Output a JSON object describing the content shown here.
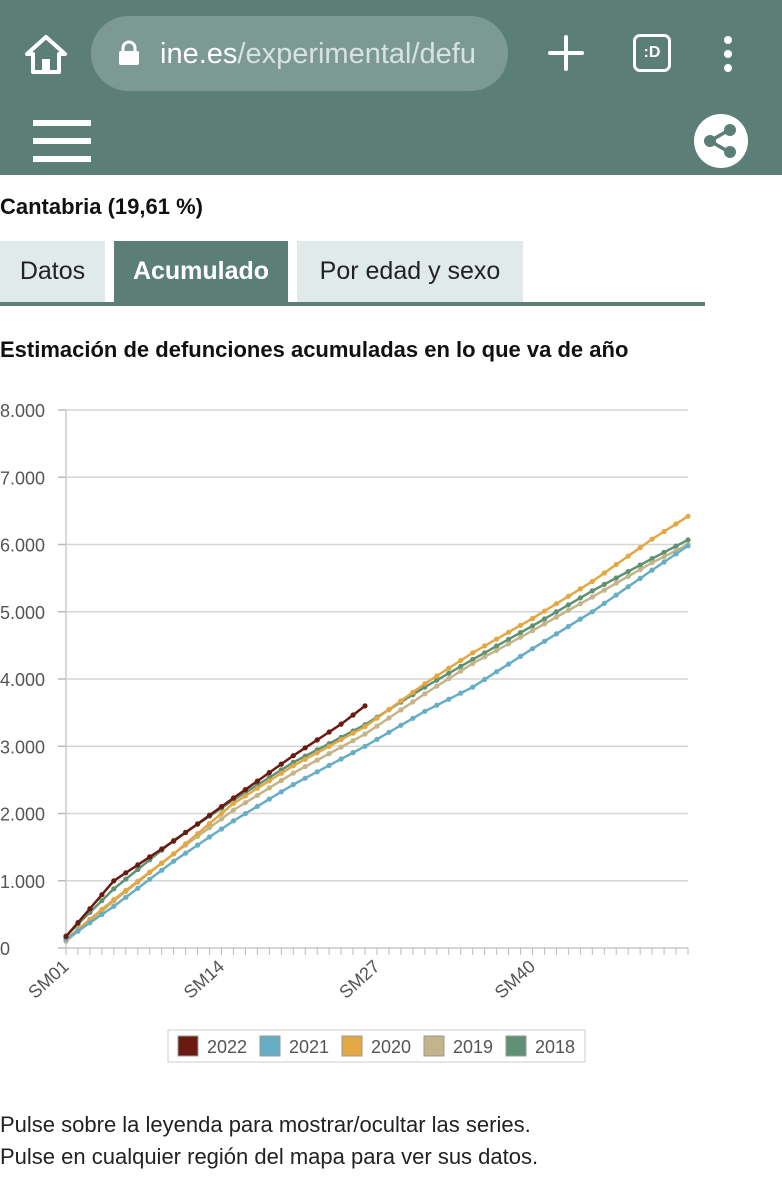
{
  "browser": {
    "url_domain": "ine.es",
    "url_path": "/experimental/defu",
    "tabs_label": ":D"
  },
  "page": {
    "region_title": "Cantabria (19,61 %)",
    "tabs": [
      "Datos",
      "Acumulado",
      "Por edad y sexo"
    ],
    "active_tab": "Acumulado",
    "chart_title": "Estimación de defunciones acumuladas en lo que va de año",
    "hints": [
      "Pulse sobre la leyenda para mostrar/ocultar las series.",
      "Pulse en cualquier región del mapa para ver sus datos."
    ]
  },
  "colors": {
    "theme": "#5b7f77",
    "tab_inactive": "#e0eaea"
  },
  "icons": [
    "home-icon",
    "lock-icon",
    "plus-icon",
    "tabs-icon",
    "more-vert-icon",
    "hamburger-icon",
    "share-icon"
  ],
  "chart_data": {
    "type": "line",
    "ylim": [
      0,
      8000
    ],
    "yticks": [
      "0",
      "1.000",
      "2.000",
      "3.000",
      "4.000",
      "5.000",
      "6.000",
      "7.000",
      "8.000"
    ],
    "ytick_values": [
      0,
      1000,
      2000,
      3000,
      4000,
      5000,
      6000,
      7000,
      8000
    ],
    "xtick_labels": [
      "SM01",
      "SM14",
      "SM27",
      "SM40"
    ],
    "xtick_weeks": [
      1,
      14,
      27,
      40
    ],
    "week_count": 53,
    "grid": true,
    "legend_position": "bottom",
    "series": [
      {
        "name": "2022",
        "color": "#6b1a12",
        "anchors": [
          [
            1,
            170
          ],
          [
            5,
            1000
          ],
          [
            10,
            1590
          ],
          [
            15,
            2230
          ],
          [
            20,
            2860
          ],
          [
            24,
            3330
          ],
          [
            26,
            3600
          ]
        ]
      },
      {
        "name": "2021",
        "color": "#66aec4",
        "anchors": [
          [
            1,
            130
          ],
          [
            5,
            620
          ],
          [
            10,
            1290
          ],
          [
            15,
            1890
          ],
          [
            20,
            2430
          ],
          [
            26,
            3000
          ],
          [
            31,
            3520
          ],
          [
            35,
            3880
          ],
          [
            40,
            4450
          ],
          [
            45,
            5000
          ],
          [
            50,
            5620
          ],
          [
            53,
            5980
          ]
        ]
      },
      {
        "name": "2020",
        "color": "#e3a843",
        "anchors": [
          [
            1,
            130
          ],
          [
            5,
            720
          ],
          [
            10,
            1400
          ],
          [
            15,
            2150
          ],
          [
            20,
            2710
          ],
          [
            26,
            3290
          ],
          [
            31,
            3930
          ],
          [
            35,
            4390
          ],
          [
            40,
            4900
          ],
          [
            45,
            5450
          ],
          [
            50,
            6080
          ],
          [
            53,
            6420
          ]
        ]
      },
      {
        "name": "2019",
        "color": "#c4b48a",
        "anchors": [
          [
            1,
            100
          ],
          [
            5,
            700
          ],
          [
            10,
            1400
          ],
          [
            15,
            2050
          ],
          [
            20,
            2600
          ],
          [
            26,
            3180
          ],
          [
            31,
            3780
          ],
          [
            35,
            4230
          ],
          [
            40,
            4720
          ],
          [
            45,
            5220
          ],
          [
            50,
            5730
          ],
          [
            53,
            6000
          ]
        ]
      },
      {
        "name": "2018",
        "color": "#5f9274",
        "anchors": [
          [
            1,
            180
          ],
          [
            5,
            880
          ],
          [
            10,
            1600
          ],
          [
            15,
            2200
          ],
          [
            20,
            2760
          ],
          [
            26,
            3320
          ],
          [
            31,
            3880
          ],
          [
            35,
            4290
          ],
          [
            40,
            4790
          ],
          [
            45,
            5310
          ],
          [
            50,
            5790
          ],
          [
            53,
            6070
          ]
        ]
      }
    ]
  }
}
